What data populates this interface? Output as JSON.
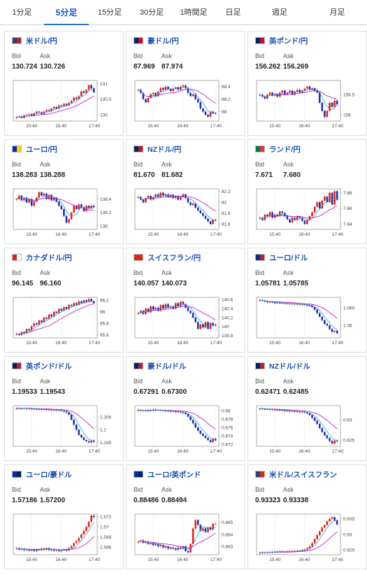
{
  "tabs": [
    {
      "label": "1分足",
      "active": false
    },
    {
      "label": "5分足",
      "active": true
    },
    {
      "label": "15分足",
      "active": false
    },
    {
      "label": "30分足",
      "active": false
    },
    {
      "label": "1時間足",
      "active": false
    },
    {
      "label": "日足",
      "active": false
    },
    {
      "label": "週足",
      "active": false
    },
    {
      "label": "月足",
      "active": false
    }
  ],
  "labels": {
    "bid": "Bid",
    "ask": "Ask"
  },
  "colors": {
    "up": "#e0201a",
    "down": "#1c2fa5",
    "ma_short": "#2a9bd8",
    "ma_long": "#c400c4",
    "link": "#1a4fb5",
    "active_tab": "#2b6fd6"
  },
  "pairs": [
    {
      "name": "米ドル/円",
      "flag": [
        "#3c3b6e",
        "#b22234"
      ],
      "bid": "130.724",
      "ask": "130.726",
      "chart_data": {
        "type": "candlestick",
        "x_ticks": [
          "15:40",
          "16:40",
          "17:40"
        ],
        "y_ticks": [
          "131",
          "130.5",
          "130"
        ],
        "ylim": [
          129.8,
          131.1
        ],
        "close": [
          129.92,
          129.95,
          129.9,
          129.98,
          130.0,
          130.02,
          129.98,
          130.05,
          130.1,
          130.08,
          130.02,
          130.1,
          130.15,
          130.12,
          130.2,
          130.25,
          130.2,
          130.3,
          130.28,
          130.35,
          130.3,
          130.38,
          130.45,
          130.55,
          130.5,
          130.6,
          130.75,
          130.7,
          130.8,
          130.95,
          130.85,
          130.72
        ]
      }
    },
    {
      "name": "豪ドル/円",
      "flag": [
        "#012169",
        "#c8102e"
      ],
      "bid": "87.969",
      "ask": "87.974",
      "chart_data": {
        "type": "candlestick",
        "x_ticks": [
          "15:40",
          "16:40",
          "17:40"
        ],
        "y_ticks": [
          "88.4",
          "88.2",
          "88"
        ],
        "ylim": [
          87.85,
          88.5
        ],
        "close": [
          88.35,
          88.3,
          88.2,
          88.15,
          88.22,
          88.28,
          88.3,
          88.25,
          88.32,
          88.38,
          88.35,
          88.4,
          88.36,
          88.33,
          88.37,
          88.39,
          88.35,
          88.4,
          88.42,
          88.38,
          88.3,
          88.25,
          88.28,
          88.2,
          88.15,
          88.05,
          88.0,
          87.95,
          87.92,
          88.0,
          87.98,
          87.97
        ]
      }
    },
    {
      "name": "英ポンド/円",
      "flag": [
        "#012169",
        "#c8102e"
      ],
      "bid": "156.262",
      "ask": "156.269",
      "chart_data": {
        "type": "candlestick",
        "x_ticks": [
          "15:40",
          "16:40",
          "17:40"
        ],
        "y_ticks": [
          "156.5",
          "156"
        ],
        "ylim": [
          155.85,
          156.85
        ],
        "close": [
          156.5,
          156.45,
          156.4,
          156.5,
          156.55,
          156.48,
          156.52,
          156.45,
          156.55,
          156.6,
          156.5,
          156.55,
          156.6,
          156.5,
          156.58,
          156.62,
          156.55,
          156.6,
          156.65,
          156.7,
          156.62,
          156.66,
          156.6,
          156.55,
          156.3,
          156.1,
          155.95,
          156.1,
          156.3,
          156.2,
          156.35,
          156.26
        ]
      }
    },
    {
      "name": "ユーロ/円",
      "flag": [
        "#003399",
        "#ffcc00"
      ],
      "bid": "138.283",
      "ask": "138.288",
      "chart_data": {
        "type": "candlestick",
        "x_ticks": [
          "15:40",
          "16:40",
          "17:40"
        ],
        "y_ticks": [
          "138.4",
          "138.2",
          "138"
        ],
        "ylim": [
          137.95,
          138.55
        ],
        "close": [
          138.4,
          138.45,
          138.38,
          138.42,
          138.35,
          138.4,
          138.3,
          138.36,
          138.42,
          138.5,
          138.45,
          138.48,
          138.4,
          138.46,
          138.38,
          138.42,
          138.36,
          138.3,
          138.25,
          138.15,
          138.05,
          138.1,
          138.2,
          138.3,
          138.25,
          138.32,
          138.28,
          138.22,
          138.3,
          138.26,
          138.3,
          138.28
        ]
      }
    },
    {
      "name": "NZドル/円",
      "flag": [
        "#012169",
        "#c8102e"
      ],
      "bid": "81.670",
      "ask": "81.682",
      "chart_data": {
        "type": "candlestick",
        "x_ticks": [
          "15:40",
          "16:40",
          "17:40"
        ],
        "y_ticks": [
          "82.2",
          "82",
          "81.8",
          "81.6"
        ],
        "ylim": [
          81.5,
          82.25
        ],
        "close": [
          82.1,
          82.05,
          82.0,
          82.08,
          82.12,
          82.05,
          82.1,
          82.15,
          82.1,
          82.18,
          82.12,
          82.15,
          82.1,
          82.14,
          82.08,
          82.12,
          82.05,
          82.1,
          82.15,
          82.08,
          82.0,
          81.95,
          81.98,
          81.9,
          81.85,
          81.8,
          81.75,
          81.7,
          81.65,
          81.6,
          81.68,
          81.67
        ]
      }
    },
    {
      "name": "ランド/円",
      "flag": [
        "#007a4d",
        "#de3831"
      ],
      "bid": "7.671",
      "ask": "7.680",
      "chart_data": {
        "type": "candlestick",
        "x_ticks": [
          "15:40",
          "16:40",
          "17:40"
        ],
        "y_ticks": [
          "7.68",
          "7.66",
          "7.64"
        ],
        "ylim": [
          7.633,
          7.685
        ],
        "close": [
          7.648,
          7.645,
          7.652,
          7.65,
          7.655,
          7.648,
          7.652,
          7.65,
          7.656,
          7.654,
          7.65,
          7.646,
          7.642,
          7.648,
          7.645,
          7.65,
          7.648,
          7.644,
          7.64,
          7.645,
          7.65,
          7.655,
          7.662,
          7.668,
          7.66,
          7.67,
          7.675,
          7.668,
          7.68,
          7.665,
          7.682,
          7.671
        ]
      }
    },
    {
      "name": "カナダドル/円",
      "flag": [
        "#d52b1e",
        "#ffffff"
      ],
      "bid": "96.145",
      "ask": "96.160",
      "chart_data": {
        "type": "candlestick",
        "x_ticks": [
          "15:40",
          "16:40",
          "17:40"
        ],
        "y_ticks": [
          "96.2",
          "96",
          "95.8",
          "95.6"
        ],
        "ylim": [
          95.55,
          96.25
        ],
        "close": [
          95.62,
          95.6,
          95.65,
          95.63,
          95.7,
          95.68,
          95.75,
          95.8,
          95.78,
          95.85,
          95.82,
          95.9,
          95.88,
          95.95,
          95.92,
          96.0,
          95.98,
          96.05,
          96.02,
          96.08,
          96.05,
          96.12,
          96.1,
          96.15,
          96.12,
          96.18,
          96.15,
          96.2,
          96.17,
          96.22,
          96.18,
          96.15
        ]
      }
    },
    {
      "name": "スイスフラン/円",
      "flag": [
        "#d52b1e",
        "#d52b1e"
      ],
      "bid": "140.057",
      "ask": "140.073",
      "chart_data": {
        "type": "candlestick",
        "x_ticks": [
          "15:40",
          "16:40",
          "17:40"
        ],
        "y_ticks": [
          "140.6",
          "140.4",
          "140.2",
          "140",
          "139.8"
        ],
        "ylim": [
          139.75,
          140.65
        ],
        "close": [
          140.3,
          140.35,
          140.28,
          140.4,
          140.32,
          140.45,
          140.38,
          140.42,
          140.35,
          140.48,
          140.4,
          140.5,
          140.42,
          140.45,
          140.4,
          140.52,
          140.45,
          140.55,
          140.5,
          140.42,
          140.35,
          140.3,
          140.2,
          140.1,
          139.95,
          140.05,
          139.98,
          140.1,
          139.95,
          140.08,
          140.02,
          140.05
        ]
      }
    },
    {
      "name": "ユーロ/ドル",
      "flag": [
        "#003399",
        "#b22234"
      ],
      "bid": "1.05781",
      "ask": "1.05785",
      "chart_data": {
        "type": "candlestick",
        "x_ticks": [
          "15:40",
          "16:40",
          "17:40"
        ],
        "y_ticks": [
          "1.065",
          "1.06"
        ],
        "ylim": [
          1.0565,
          1.068
        ],
        "close": [
          1.0672,
          1.067,
          1.0668,
          1.0666,
          1.0667,
          1.0665,
          1.0664,
          1.0665,
          1.0663,
          1.0664,
          1.0662,
          1.0663,
          1.0661,
          1.0662,
          1.066,
          1.0661,
          1.0659,
          1.066,
          1.0658,
          1.0657,
          1.0656,
          1.0652,
          1.0645,
          1.0635,
          1.0625,
          1.0615,
          1.0605,
          1.06,
          1.059,
          1.0582,
          1.0585,
          1.0578
        ]
      }
    },
    {
      "name": "英ポンド/ドル",
      "flag": [
        "#012169",
        "#b22234"
      ],
      "bid": "1.19533",
      "ask": "1.19543",
      "chart_data": {
        "type": "candlestick",
        "x_ticks": [
          "15:40",
          "16:40",
          "17:40"
        ],
        "y_ticks": [
          "1.205",
          "1.2",
          "1.195"
        ],
        "ylim": [
          1.1935,
          1.2095
        ],
        "close": [
          1.2085,
          1.2084,
          1.2083,
          1.2085,
          1.2082,
          1.2084,
          1.2081,
          1.2083,
          1.208,
          1.2082,
          1.2079,
          1.2081,
          1.2078,
          1.208,
          1.2077,
          1.2079,
          1.2076,
          1.2078,
          1.2075,
          1.2072,
          1.2068,
          1.206,
          1.204,
          1.202,
          1.2,
          1.198,
          1.197,
          1.196,
          1.1955,
          1.195,
          1.1958,
          1.1953
        ]
      }
    },
    {
      "name": "豪ドル/ドル",
      "flag": [
        "#012169",
        "#b22234"
      ],
      "bid": "0.67291",
      "ask": "0.67300",
      "chart_data": {
        "type": "candlestick",
        "x_ticks": [
          "15:40",
          "16:40",
          "17:40"
        ],
        "y_ticks": [
          "0.68",
          "0.678",
          "0.676",
          "0.674",
          "0.672"
        ],
        "ylim": [
          0.6715,
          0.6812
        ],
        "close": [
          0.6802,
          0.68,
          0.6801,
          0.6799,
          0.6802,
          0.68,
          0.6803,
          0.6801,
          0.6802,
          0.68,
          0.6801,
          0.6799,
          0.68,
          0.6798,
          0.6799,
          0.6797,
          0.6798,
          0.6796,
          0.6795,
          0.6792,
          0.6786,
          0.6778,
          0.677,
          0.676,
          0.6752,
          0.6745,
          0.674,
          0.6735,
          0.673,
          0.6725,
          0.6733,
          0.6729
        ]
      }
    },
    {
      "name": "NZドル/ドル",
      "flag": [
        "#012169",
        "#b22234"
      ],
      "bid": "0.62471",
      "ask": "0.62485",
      "chart_data": {
        "type": "candlestick",
        "x_ticks": [
          "15:40",
          "16:40",
          "17:40"
        ],
        "y_ticks": [
          "0.63",
          "0.625"
        ],
        "ylim": [
          0.6235,
          0.6335
        ],
        "close": [
          0.6328,
          0.6327,
          0.6326,
          0.6327,
          0.6325,
          0.6326,
          0.6324,
          0.6325,
          0.6323,
          0.6324,
          0.6322,
          0.6323,
          0.6321,
          0.6322,
          0.632,
          0.6321,
          0.6319,
          0.632,
          0.6318,
          0.6316,
          0.6312,
          0.6305,
          0.6298,
          0.629,
          0.628,
          0.627,
          0.6262,
          0.6255,
          0.6248,
          0.6242,
          0.6249,
          0.6247
        ]
      }
    },
    {
      "name": "ユーロ/豪ドル",
      "flag": [
        "#003399",
        "#012169"
      ],
      "bid": "1.57186",
      "ask": "1.57200",
      "chart_data": {
        "type": "candlestick",
        "x_ticks": [
          "15:40",
          "16:40",
          "17:40"
        ],
        "y_ticks": [
          "1.572",
          "1.57",
          "1.568",
          "1.566"
        ],
        "ylim": [
          1.5645,
          1.5725
        ],
        "close": [
          1.5658,
          1.5655,
          1.5657,
          1.5654,
          1.5656,
          1.5653,
          1.5655,
          1.5652,
          1.5656,
          1.5654,
          1.5657,
          1.5655,
          1.5658,
          1.5654,
          1.5656,
          1.5653,
          1.5655,
          1.5652,
          1.5654,
          1.5656,
          1.5653,
          1.5658,
          1.5662,
          1.5668,
          1.5672,
          1.5678,
          1.5685,
          1.5692,
          1.57,
          1.571,
          1.5722,
          1.5719
        ]
      }
    },
    {
      "name": "ユーロ/英ポンド",
      "flag": [
        "#003399",
        "#012169"
      ],
      "bid": "0.88486",
      "ask": "0.88494",
      "chart_data": {
        "type": "candlestick",
        "x_ticks": [
          "15:40",
          "16:40",
          "17:40"
        ],
        "y_ticks": [
          "0.885",
          "0.884",
          "0.883"
        ],
        "ylim": [
          0.8823,
          0.8857
        ],
        "close": [
          0.8834,
          0.8835,
          0.8833,
          0.8834,
          0.8832,
          0.8833,
          0.8831,
          0.8832,
          0.883,
          0.8831,
          0.8829,
          0.883,
          0.8828,
          0.8829,
          0.8828,
          0.8827,
          0.8829,
          0.8828,
          0.883,
          0.8826,
          0.8825,
          0.8832,
          0.8845,
          0.8852,
          0.8848,
          0.8843,
          0.8845,
          0.8842,
          0.8846,
          0.8844,
          0.8849,
          0.8849
        ]
      }
    },
    {
      "name": "米ドル/スイスフラン",
      "flag": [
        "#3c3b6e",
        "#d52b1e"
      ],
      "bid": "0.93323",
      "ask": "0.93338",
      "chart_data": {
        "type": "candlestick",
        "x_ticks": [
          "15:40",
          "16:40",
          "17:40"
        ],
        "y_ticks": [
          "0.935",
          "0.93",
          "0.925"
        ],
        "ylim": [
          0.9235,
          0.9365
        ],
        "close": [
          0.9242,
          0.9241,
          0.9243,
          0.9242,
          0.9244,
          0.9243,
          0.9245,
          0.9244,
          0.9246,
          0.9245,
          0.9244,
          0.9246,
          0.9245,
          0.9247,
          0.9246,
          0.9248,
          0.9247,
          0.925,
          0.9252,
          0.9256,
          0.9262,
          0.9272,
          0.9285,
          0.9298,
          0.931,
          0.9322,
          0.933,
          0.9342,
          0.935,
          0.9355,
          0.9345,
          0.9332
        ]
      }
    }
  ]
}
